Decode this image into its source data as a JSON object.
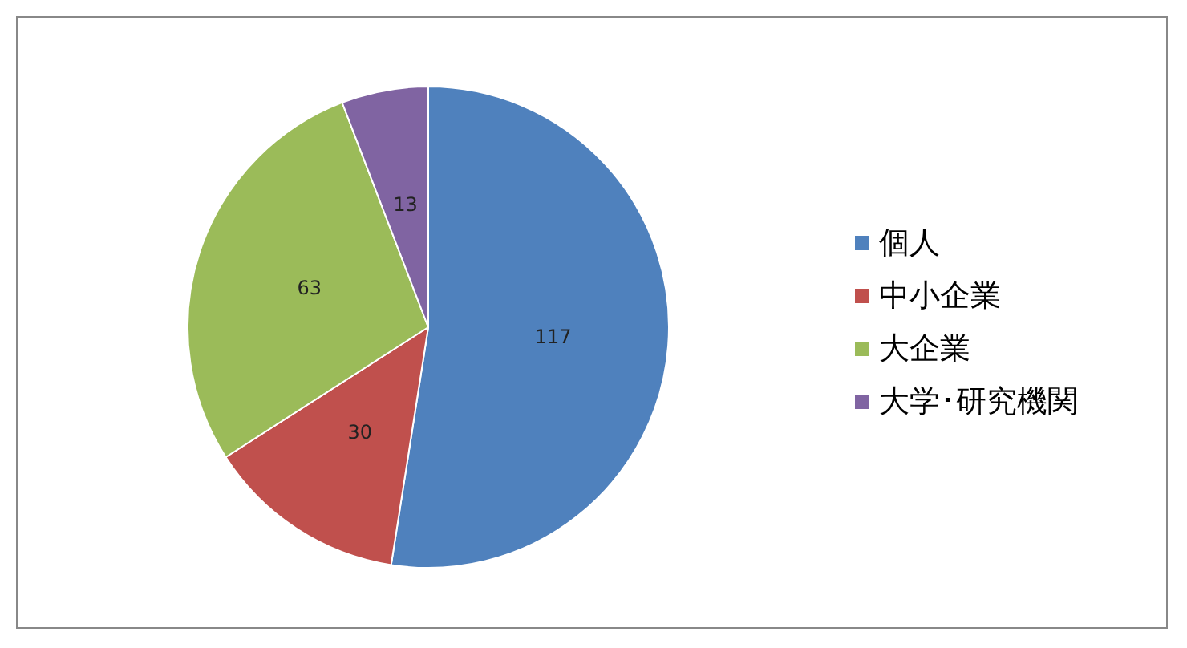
{
  "chart_data": {
    "type": "pie",
    "categories": [
      "個人",
      "中小企業",
      "大企業",
      "大学･研究機関"
    ],
    "values": [
      117,
      30,
      63,
      13
    ],
    "colors": [
      "#4f81bd",
      "#c0504d",
      "#9bbb59",
      "#8064a2"
    ],
    "data_labels": true,
    "legend": "right"
  }
}
